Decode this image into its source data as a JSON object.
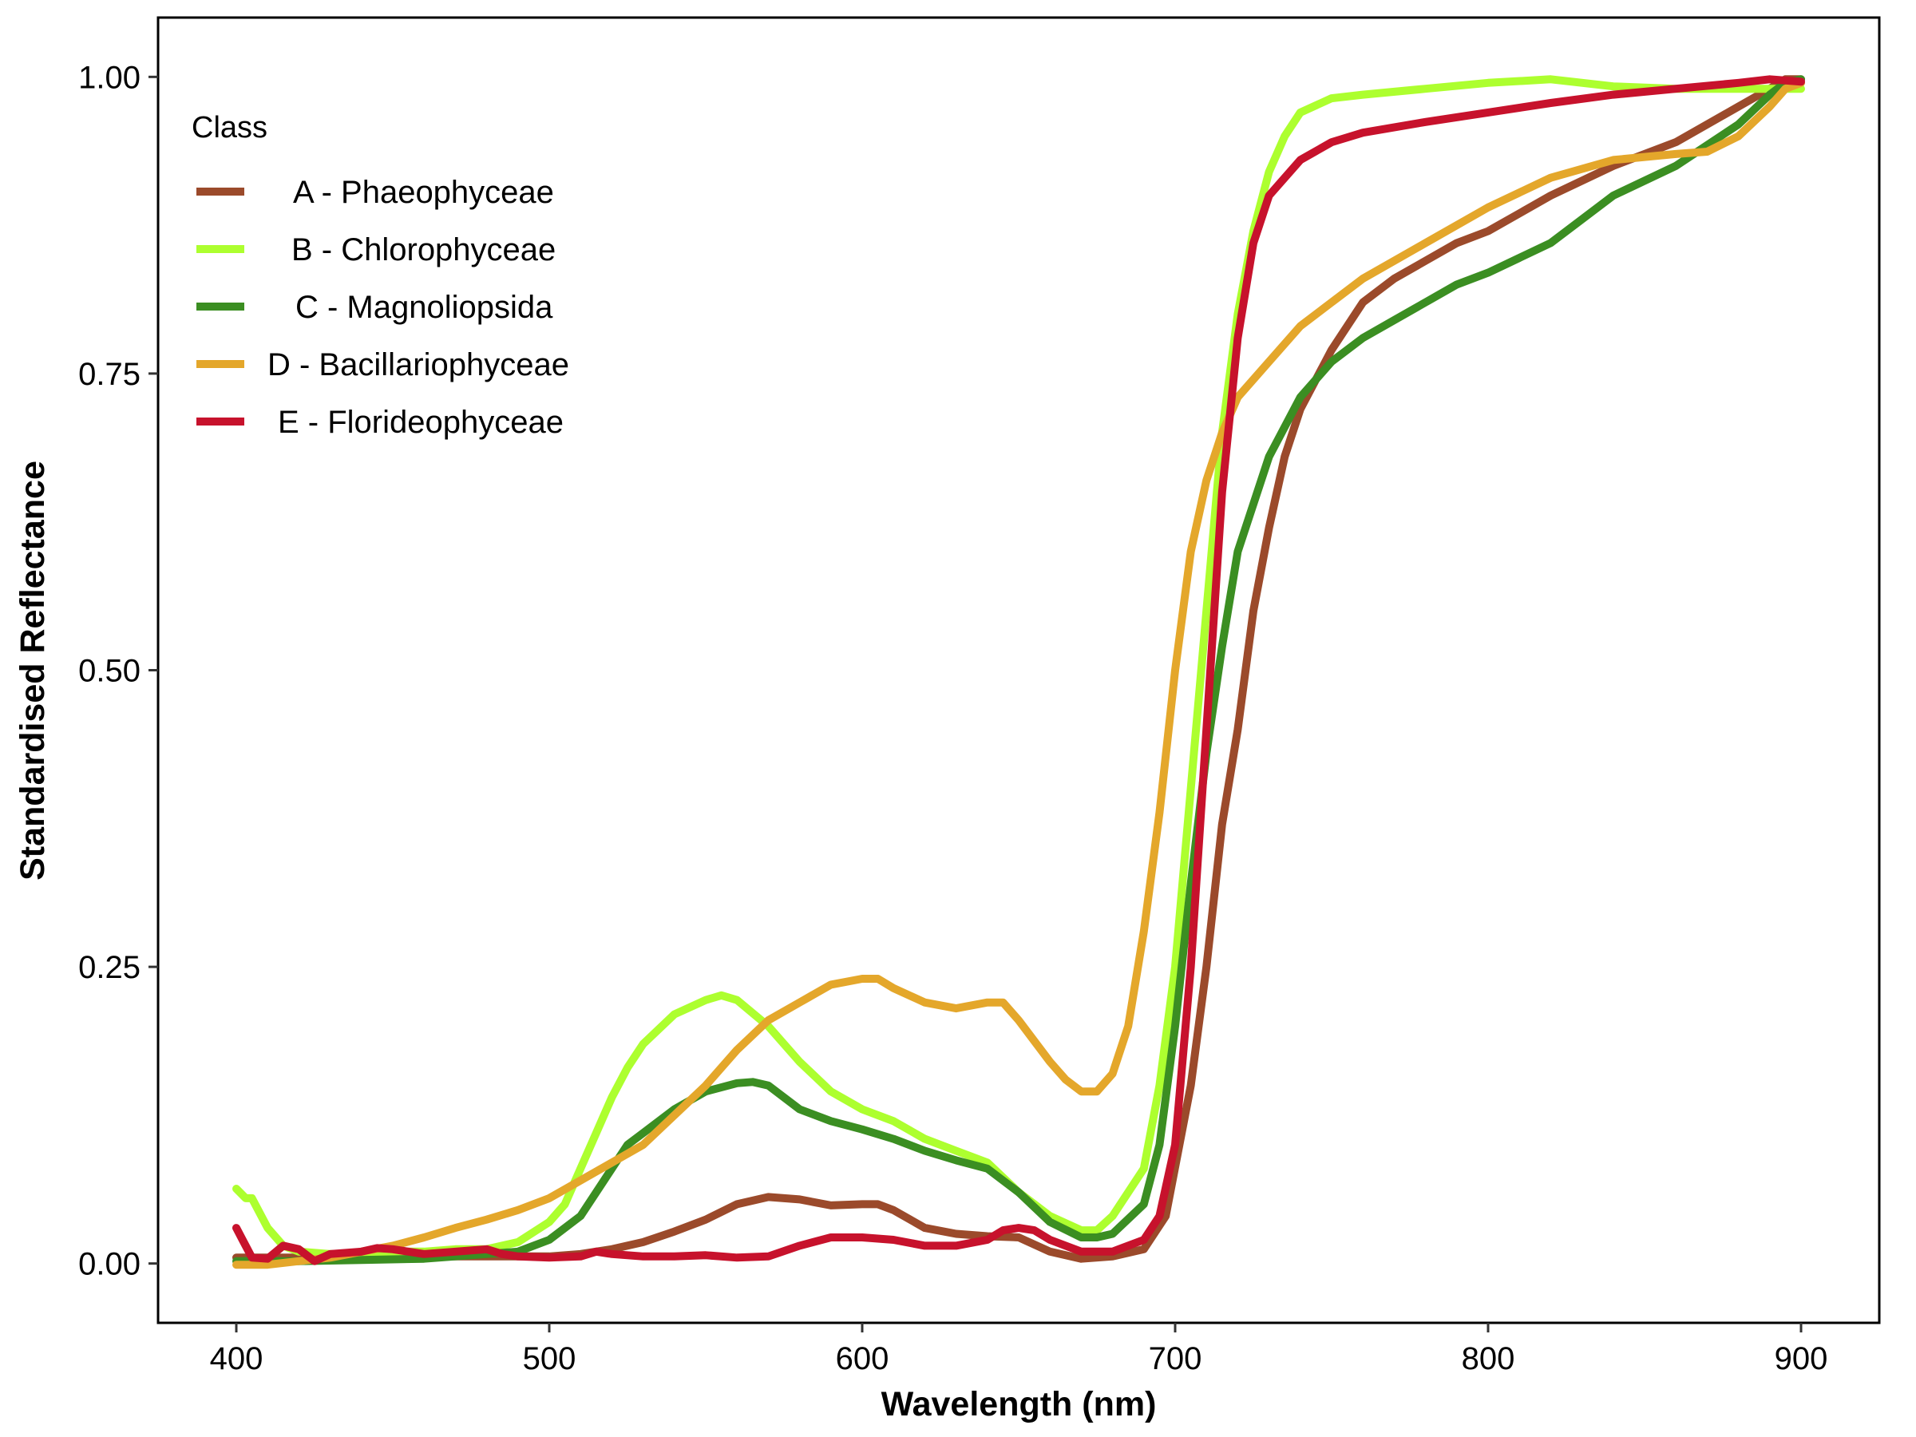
{
  "chart_data": {
    "type": "line",
    "title": "",
    "xlabel": "Wavelength (nm)",
    "ylabel": "Standardised Reflectance",
    "xlim": [
      375,
      925
    ],
    "ylim": [
      -0.05,
      1.05
    ],
    "x_ticks": [
      "400",
      "500",
      "600",
      "700",
      "800",
      "900"
    ],
    "y_ticks": [
      "0.00",
      "0.25",
      "0.50",
      "0.75",
      "1.00"
    ],
    "grid": false,
    "legend": {
      "title": "Class",
      "position": "top-left"
    },
    "series": [
      {
        "name": "A - Phaeophyceae",
        "color": "#9b4a2b",
        "points": [
          [
            400,
            0.005
          ],
          [
            420,
            0.005
          ],
          [
            450,
            0.006
          ],
          [
            480,
            0.006
          ],
          [
            500,
            0.006
          ],
          [
            510,
            0.008
          ],
          [
            520,
            0.012
          ],
          [
            530,
            0.018
          ],
          [
            540,
            0.027
          ],
          [
            550,
            0.037
          ],
          [
            560,
            0.05
          ],
          [
            570,
            0.056
          ],
          [
            580,
            0.054
          ],
          [
            590,
            0.049
          ],
          [
            600,
            0.05
          ],
          [
            605,
            0.05
          ],
          [
            610,
            0.045
          ],
          [
            620,
            0.03
          ],
          [
            630,
            0.025
          ],
          [
            640,
            0.023
          ],
          [
            650,
            0.022
          ],
          [
            660,
            0.01
          ],
          [
            670,
            0.004
          ],
          [
            680,
            0.006
          ],
          [
            690,
            0.012
          ],
          [
            697,
            0.04
          ],
          [
            705,
            0.15
          ],
          [
            710,
            0.25
          ],
          [
            715,
            0.37
          ],
          [
            720,
            0.45
          ],
          [
            725,
            0.55
          ],
          [
            730,
            0.62
          ],
          [
            735,
            0.68
          ],
          [
            740,
            0.72
          ],
          [
            750,
            0.77
          ],
          [
            760,
            0.81
          ],
          [
            770,
            0.83
          ],
          [
            780,
            0.845
          ],
          [
            790,
            0.86
          ],
          [
            800,
            0.87
          ],
          [
            810,
            0.885
          ],
          [
            820,
            0.9
          ],
          [
            840,
            0.925
          ],
          [
            860,
            0.945
          ],
          [
            880,
            0.975
          ],
          [
            890,
            0.99
          ],
          [
            895,
            0.998
          ],
          [
            900,
            0.998
          ]
        ]
      },
      {
        "name": "B - Chlorophyceae",
        "color": "#adff2f",
        "points": [
          [
            400,
            0.063
          ],
          [
            403,
            0.055
          ],
          [
            405,
            0.055
          ],
          [
            410,
            0.03
          ],
          [
            415,
            0.015
          ],
          [
            420,
            0.01
          ],
          [
            430,
            0.008
          ],
          [
            440,
            0.008
          ],
          [
            450,
            0.01
          ],
          [
            460,
            0.01
          ],
          [
            470,
            0.012
          ],
          [
            480,
            0.012
          ],
          [
            490,
            0.018
          ],
          [
            500,
            0.035
          ],
          [
            505,
            0.05
          ],
          [
            510,
            0.08
          ],
          [
            515,
            0.11
          ],
          [
            520,
            0.14
          ],
          [
            525,
            0.165
          ],
          [
            530,
            0.185
          ],
          [
            540,
            0.21
          ],
          [
            550,
            0.222
          ],
          [
            555,
            0.226
          ],
          [
            560,
            0.222
          ],
          [
            570,
            0.2
          ],
          [
            580,
            0.17
          ],
          [
            590,
            0.145
          ],
          [
            600,
            0.13
          ],
          [
            610,
            0.12
          ],
          [
            620,
            0.105
          ],
          [
            630,
            0.095
          ],
          [
            640,
            0.085
          ],
          [
            650,
            0.06
          ],
          [
            660,
            0.04
          ],
          [
            670,
            0.028
          ],
          [
            675,
            0.028
          ],
          [
            680,
            0.04
          ],
          [
            690,
            0.08
          ],
          [
            695,
            0.15
          ],
          [
            700,
            0.25
          ],
          [
            705,
            0.4
          ],
          [
            710,
            0.55
          ],
          [
            715,
            0.7
          ],
          [
            720,
            0.8
          ],
          [
            725,
            0.87
          ],
          [
            730,
            0.92
          ],
          [
            735,
            0.95
          ],
          [
            740,
            0.97
          ],
          [
            750,
            0.982
          ],
          [
            760,
            0.985
          ],
          [
            780,
            0.99
          ],
          [
            800,
            0.995
          ],
          [
            820,
            0.998
          ],
          [
            840,
            0.992
          ],
          [
            860,
            0.99
          ],
          [
            880,
            0.99
          ],
          [
            900,
            0.99
          ]
        ]
      },
      {
        "name": "C - Magnoliopsida",
        "color": "#3b8e22",
        "points": [
          [
            400,
            0.002
          ],
          [
            420,
            0.002
          ],
          [
            440,
            0.003
          ],
          [
            460,
            0.004
          ],
          [
            480,
            0.008
          ],
          [
            490,
            0.01
          ],
          [
            500,
            0.02
          ],
          [
            510,
            0.04
          ],
          [
            515,
            0.06
          ],
          [
            520,
            0.08
          ],
          [
            525,
            0.1
          ],
          [
            530,
            0.11
          ],
          [
            540,
            0.13
          ],
          [
            550,
            0.145
          ],
          [
            560,
            0.152
          ],
          [
            565,
            0.153
          ],
          [
            570,
            0.15
          ],
          [
            580,
            0.13
          ],
          [
            590,
            0.12
          ],
          [
            600,
            0.113
          ],
          [
            610,
            0.105
          ],
          [
            620,
            0.095
          ],
          [
            630,
            0.087
          ],
          [
            640,
            0.08
          ],
          [
            650,
            0.06
          ],
          [
            660,
            0.035
          ],
          [
            670,
            0.022
          ],
          [
            675,
            0.022
          ],
          [
            680,
            0.025
          ],
          [
            690,
            0.05
          ],
          [
            695,
            0.1
          ],
          [
            700,
            0.2
          ],
          [
            705,
            0.32
          ],
          [
            710,
            0.43
          ],
          [
            715,
            0.52
          ],
          [
            720,
            0.6
          ],
          [
            725,
            0.64
          ],
          [
            730,
            0.68
          ],
          [
            740,
            0.73
          ],
          [
            750,
            0.76
          ],
          [
            760,
            0.78
          ],
          [
            770,
            0.795
          ],
          [
            780,
            0.81
          ],
          [
            790,
            0.825
          ],
          [
            800,
            0.835
          ],
          [
            820,
            0.86
          ],
          [
            840,
            0.9
          ],
          [
            860,
            0.925
          ],
          [
            880,
            0.96
          ],
          [
            890,
            0.985
          ],
          [
            895,
            0.995
          ],
          [
            900,
            0.998
          ]
        ]
      },
      {
        "name": "D - Bacillariophyceae",
        "color": "#e4a72b",
        "points": [
          [
            400,
            -0.001
          ],
          [
            410,
            -0.001
          ],
          [
            420,
            0.002
          ],
          [
            430,
            0.005
          ],
          [
            440,
            0.01
          ],
          [
            450,
            0.015
          ],
          [
            460,
            0.022
          ],
          [
            470,
            0.03
          ],
          [
            480,
            0.037
          ],
          [
            490,
            0.045
          ],
          [
            500,
            0.055
          ],
          [
            510,
            0.07
          ],
          [
            520,
            0.085
          ],
          [
            530,
            0.1
          ],
          [
            540,
            0.125
          ],
          [
            550,
            0.15
          ],
          [
            560,
            0.18
          ],
          [
            570,
            0.205
          ],
          [
            580,
            0.22
          ],
          [
            590,
            0.235
          ],
          [
            600,
            0.24
          ],
          [
            605,
            0.24
          ],
          [
            610,
            0.232
          ],
          [
            620,
            0.22
          ],
          [
            630,
            0.215
          ],
          [
            640,
            0.22
          ],
          [
            645,
            0.22
          ],
          [
            650,
            0.205
          ],
          [
            660,
            0.17
          ],
          [
            665,
            0.155
          ],
          [
            670,
            0.145
          ],
          [
            675,
            0.145
          ],
          [
            680,
            0.16
          ],
          [
            685,
            0.2
          ],
          [
            690,
            0.28
          ],
          [
            695,
            0.38
          ],
          [
            700,
            0.5
          ],
          [
            705,
            0.6
          ],
          [
            710,
            0.66
          ],
          [
            715,
            0.7
          ],
          [
            720,
            0.73
          ],
          [
            730,
            0.76
          ],
          [
            740,
            0.79
          ],
          [
            750,
            0.81
          ],
          [
            760,
            0.83
          ],
          [
            780,
            0.86
          ],
          [
            800,
            0.89
          ],
          [
            820,
            0.915
          ],
          [
            840,
            0.93
          ],
          [
            860,
            0.935
          ],
          [
            870,
            0.937
          ],
          [
            880,
            0.95
          ],
          [
            890,
            0.975
          ],
          [
            895,
            0.99
          ],
          [
            900,
            0.995
          ]
        ]
      },
      {
        "name": "E - Florideophyceae",
        "color": "#c7122c",
        "points": [
          [
            400,
            0.03
          ],
          [
            402,
            0.02
          ],
          [
            405,
            0.005
          ],
          [
            410,
            0.004
          ],
          [
            415,
            0.015
          ],
          [
            420,
            0.012
          ],
          [
            425,
            0.002
          ],
          [
            430,
            0.008
          ],
          [
            440,
            0.01
          ],
          [
            445,
            0.013
          ],
          [
            450,
            0.012
          ],
          [
            460,
            0.008
          ],
          [
            470,
            0.01
          ],
          [
            480,
            0.012
          ],
          [
            485,
            0.008
          ],
          [
            490,
            0.006
          ],
          [
            500,
            0.005
          ],
          [
            510,
            0.006
          ],
          [
            515,
            0.01
          ],
          [
            520,
            0.008
          ],
          [
            530,
            0.006
          ],
          [
            540,
            0.006
          ],
          [
            550,
            0.007
          ],
          [
            560,
            0.005
          ],
          [
            570,
            0.006
          ],
          [
            580,
            0.015
          ],
          [
            590,
            0.022
          ],
          [
            600,
            0.022
          ],
          [
            610,
            0.02
          ],
          [
            620,
            0.015
          ],
          [
            630,
            0.015
          ],
          [
            640,
            0.02
          ],
          [
            645,
            0.028
          ],
          [
            650,
            0.03
          ],
          [
            655,
            0.028
          ],
          [
            660,
            0.02
          ],
          [
            670,
            0.01
          ],
          [
            680,
            0.01
          ],
          [
            690,
            0.02
          ],
          [
            695,
            0.04
          ],
          [
            700,
            0.1
          ],
          [
            705,
            0.25
          ],
          [
            710,
            0.45
          ],
          [
            715,
            0.65
          ],
          [
            720,
            0.78
          ],
          [
            725,
            0.86
          ],
          [
            730,
            0.9
          ],
          [
            740,
            0.93
          ],
          [
            750,
            0.945
          ],
          [
            760,
            0.953
          ],
          [
            780,
            0.962
          ],
          [
            800,
            0.97
          ],
          [
            820,
            0.978
          ],
          [
            840,
            0.985
          ],
          [
            860,
            0.99
          ],
          [
            880,
            0.995
          ],
          [
            890,
            0.998
          ],
          [
            900,
            0.996
          ]
        ]
      }
    ]
  }
}
